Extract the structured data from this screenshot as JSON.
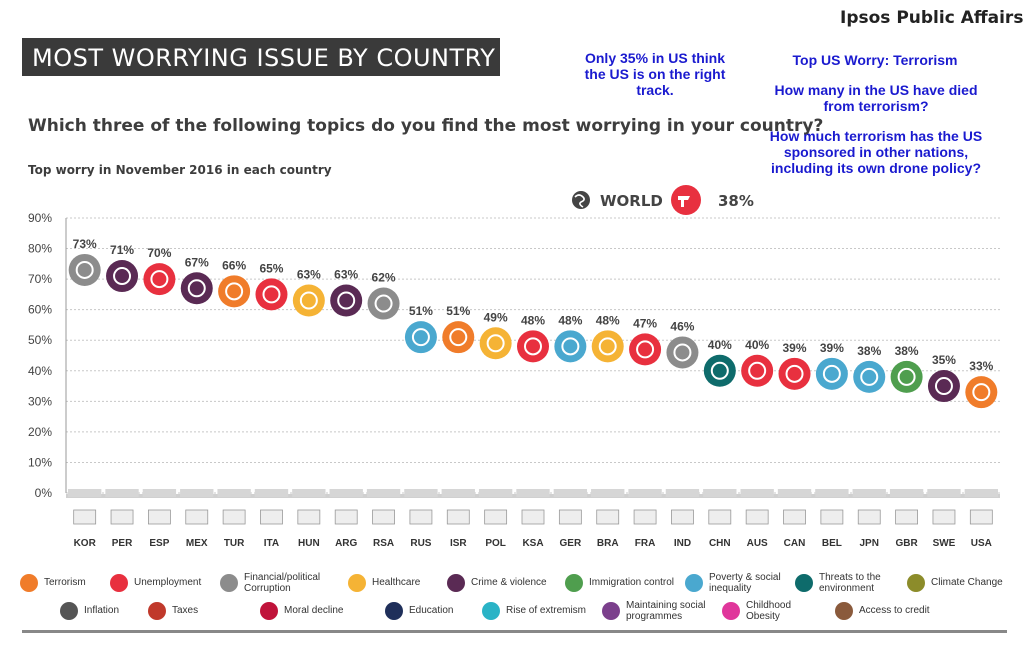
{
  "brand": "Ipsos Public Affairs",
  "title": "MOST WORRYING ISSUE BY COUNTRY",
  "notes": {
    "right_track": "Only 35% in US think the US is on the right track.",
    "top_us": "Top US Worry: Terrorism",
    "died": "How many in the US have died from terrorism?",
    "sponsored": "How much terrorism has the US sponsored in other nations, including its own drone policy?"
  },
  "question": "Which three of the following topics do you find the most worrying in your country?",
  "subtitle": "Top worry in November 2016 in each country",
  "world": {
    "label": "WORLD",
    "value": "38%",
    "issue": "Unemployment"
  },
  "colors": {
    "Terrorism": "#f07c2a",
    "Unemployment": "#e8303f",
    "Financial/political Corruption": "#8c8c8c",
    "Healthcare": "#f5b335",
    "Crime & violence": "#5a2a54",
    "Immigration control": "#4f9e4e",
    "Poverty & social inequality": "#4aa8cf",
    "Threats to the environment": "#0e6b6b",
    "Climate Change": "#8c8c2a",
    "Inflation": "#555555",
    "Taxes": "#c0392b",
    "Moral decline": "#c0133a",
    "Education": "#1f2f5a",
    "Rise of extremism": "#2ab3c6",
    "Maintaining social programmes": "#7b3f8c",
    "Childhood Obesity": "#e0369b",
    "Access to credit": "#8a5a3c"
  },
  "chart_data": {
    "type": "scatter",
    "title": "Top worry in November 2016 in each country",
    "categories": [
      "KOR",
      "PER",
      "ESP",
      "MEX",
      "TUR",
      "ITA",
      "HUN",
      "ARG",
      "RSA",
      "RUS",
      "ISR",
      "POL",
      "KSA",
      "GER",
      "BRA",
      "FRA",
      "IND",
      "CHN",
      "AUS",
      "CAN",
      "BEL",
      "JPN",
      "GBR",
      "SWE",
      "USA"
    ],
    "values": [
      73,
      71,
      70,
      67,
      66,
      65,
      63,
      63,
      62,
      51,
      51,
      49,
      48,
      48,
      48,
      47,
      46,
      40,
      40,
      39,
      39,
      38,
      38,
      35,
      33
    ],
    "value_labels": [
      "73%",
      "71%",
      "70%",
      "67%",
      "66%",
      "65%",
      "63%",
      "63%",
      "62%",
      "51%",
      "51%",
      "49%",
      "48%",
      "48%",
      "48%",
      "47%",
      "46%",
      "40%",
      "40%",
      "39%",
      "39%",
      "38%",
      "38%",
      "35%",
      "33%"
    ],
    "issues": [
      "Financial/political Corruption",
      "Crime & violence",
      "Unemployment",
      "Crime & violence",
      "Terrorism",
      "Unemployment",
      "Healthcare",
      "Crime & violence",
      "Financial/political Corruption",
      "Poverty & social inequality",
      "Terrorism",
      "Healthcare",
      "Unemployment",
      "Poverty & social inequality",
      "Healthcare",
      "Unemployment",
      "Financial/political Corruption",
      "Threats to the environment",
      "Unemployment",
      "Unemployment",
      "Poverty & social inequality",
      "Poverty & social inequality",
      "Immigration control",
      "Crime & violence",
      "Terrorism"
    ],
    "ylim": [
      0,
      90
    ],
    "yticks": [
      "0%",
      "10%",
      "20%",
      "30%",
      "40%",
      "50%",
      "60%",
      "70%",
      "80%",
      "90%"
    ],
    "grid": true
  },
  "legend": [
    {
      "label": "Terrorism",
      "icon": "terrorism-icon"
    },
    {
      "label": "Unemployment",
      "icon": "unemployment-icon"
    },
    {
      "label": "Financial/political Corruption",
      "icon": "corruption-icon"
    },
    {
      "label": "Healthcare",
      "icon": "healthcare-icon"
    },
    {
      "label": "Crime & violence",
      "icon": "crime-icon"
    },
    {
      "label": "Immigration control",
      "icon": "immigration-icon"
    },
    {
      "label": "Poverty & social inequality",
      "icon": "poverty-icon"
    },
    {
      "label": "Threats to the environment",
      "icon": "environment-icon"
    },
    {
      "label": "Climate Change",
      "icon": "climate-icon"
    },
    {
      "label": "Inflation",
      "icon": "inflation-icon"
    },
    {
      "label": "Taxes",
      "icon": "taxes-icon"
    },
    {
      "label": "Moral decline",
      "icon": "moral-decline-icon"
    },
    {
      "label": "Education",
      "icon": "education-icon"
    },
    {
      "label": "Rise of extremism",
      "icon": "extremism-icon"
    },
    {
      "label": "Maintaining social programmes",
      "icon": "social-programmes-icon"
    },
    {
      "label": "Childhood Obesity",
      "icon": "obesity-icon"
    },
    {
      "label": "Access to credit",
      "icon": "credit-icon"
    }
  ]
}
